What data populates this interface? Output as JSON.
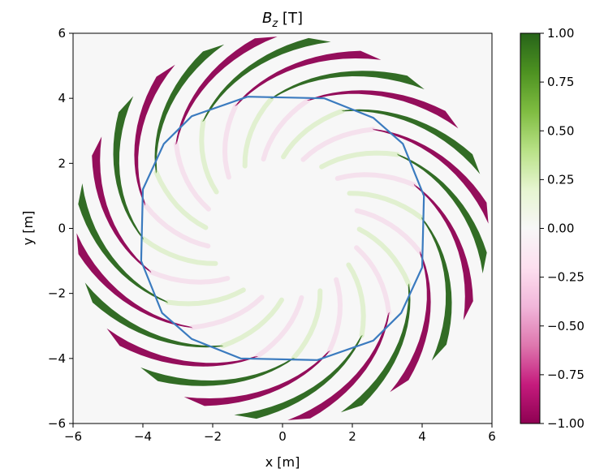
{
  "chart_data": {
    "type": "heatmap",
    "title": {
      "main": "B",
      "subscript": "z",
      "unit": " [T]"
    },
    "xlabel": "x [m]",
    "ylabel": "y [m]",
    "xlim": [
      -6,
      6
    ],
    "ylim": [
      -6,
      6
    ],
    "x_ticks": [
      -6,
      -4,
      -2,
      0,
      2,
      4,
      6
    ],
    "x_tick_labels": [
      "−6",
      "−4",
      "−2",
      "0",
      "2",
      "4",
      "6"
    ],
    "y_ticks": [
      -6,
      -4,
      -2,
      0,
      2,
      4,
      6
    ],
    "y_tick_labels": [
      "−6",
      "−4",
      "−2",
      "0",
      "2",
      "4",
      "6"
    ],
    "grid": false,
    "colormap": {
      "name": "PiYG",
      "range": [
        -1.0,
        1.0
      ],
      "ticks": [
        1.0,
        0.75,
        0.5,
        0.25,
        0.0,
        -0.25,
        -0.5,
        -0.75,
        -1.0
      ],
      "tick_labels": [
        "1.00",
        "0.75",
        "0.50",
        "0.25",
        "0.00",
        "−0.25",
        "−0.50",
        "−0.75",
        "−1.00"
      ],
      "colors": [
        "#8e0152",
        "#c51b7d",
        "#de77ae",
        "#f1b6da",
        "#fde0ef",
        "#f7f7f7",
        "#e6f5d0",
        "#b8e186",
        "#7fbc41",
        "#4d9221",
        "#276419"
      ]
    },
    "field_pattern": {
      "description": "24 curved spiral blades between r≈4 m and r≈5.9 m, alternating positive/negative",
      "blade_count": 24,
      "inner_radius": 4.0,
      "outer_radius": 5.9,
      "twist_deg": 45
    },
    "contour": {
      "color": "#3b7bbf",
      "points": [
        [
          -1.0,
          4.05
        ],
        [
          1.2,
          4.0
        ],
        [
          2.6,
          3.4
        ],
        [
          3.45,
          2.6
        ],
        [
          4.05,
          1.0
        ],
        [
          4.0,
          -1.2
        ],
        [
          3.4,
          -2.6
        ],
        [
          2.6,
          -3.45
        ],
        [
          1.0,
          -4.05
        ],
        [
          -1.2,
          -4.0
        ],
        [
          -2.6,
          -3.4
        ],
        [
          -3.45,
          -2.6
        ],
        [
          -4.05,
          -1.0
        ],
        [
          -4.0,
          1.2
        ],
        [
          -3.4,
          2.6
        ],
        [
          -2.6,
          3.45
        ],
        [
          -1.0,
          4.05
        ]
      ]
    }
  }
}
